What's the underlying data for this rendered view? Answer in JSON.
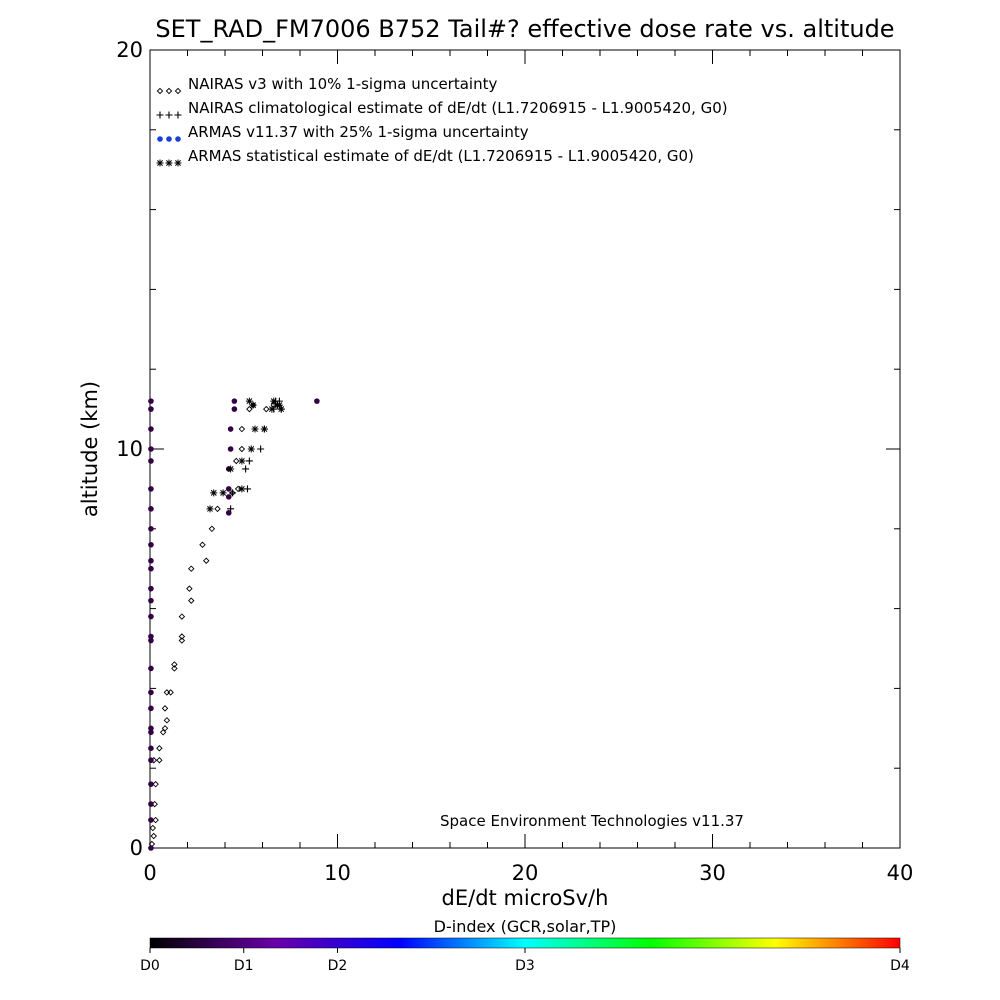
{
  "chart_data": {
    "type": "scatter",
    "title": "SET_RAD_FM7006  B752 Tail#? effective dose rate vs. altitude",
    "xlabel": "dE/dt microSv/h",
    "ylabel": "altitude (km)",
    "xlim": [
      0,
      40
    ],
    "ylim": [
      0,
      20
    ],
    "xticks": [
      0,
      10,
      20,
      30,
      40
    ],
    "yticks": [
      0,
      10,
      20
    ],
    "grid": false,
    "legend_position": "top-left",
    "annotation": "Space Environment Technologies v11.37",
    "colorbar": {
      "title": "D-index (GCR,solar,TP)",
      "labels": [
        "D0",
        "D1",
        "D2",
        "D3",
        "D4"
      ],
      "label_positions": [
        0.0,
        0.125,
        0.25,
        0.5,
        1.0
      ],
      "colors": [
        "#000000",
        "#6a00a8",
        "#0000ff",
        "#00ffff",
        "#00ff00",
        "#ffff00",
        "#ff0000"
      ]
    },
    "series": [
      {
        "name": "NAIRAS v3 with 10% 1-sigma uncertainty",
        "marker": "diamond",
        "color": "#000000",
        "points": [
          [
            0.1,
            0.1
          ],
          [
            0.2,
            0.3
          ],
          [
            0.15,
            0.5
          ],
          [
            0.3,
            0.7
          ],
          [
            0.25,
            1.1
          ],
          [
            0.3,
            1.6
          ],
          [
            0.2,
            2.2
          ],
          [
            0.5,
            2.2
          ],
          [
            0.5,
            2.5
          ],
          [
            0.7,
            2.9
          ],
          [
            0.8,
            3.0
          ],
          [
            0.9,
            3.2
          ],
          [
            0.8,
            3.5
          ],
          [
            1.1,
            3.9
          ],
          [
            0.9,
            3.9
          ],
          [
            1.3,
            4.5
          ],
          [
            1.3,
            4.6
          ],
          [
            1.7,
            5.2
          ],
          [
            1.7,
            5.3
          ],
          [
            1.7,
            5.8
          ],
          [
            2.2,
            6.2
          ],
          [
            2.1,
            6.5
          ],
          [
            2.2,
            7.0
          ],
          [
            3.0,
            7.2
          ],
          [
            2.8,
            7.6
          ],
          [
            3.3,
            8.0
          ],
          [
            3.6,
            8.5
          ],
          [
            4.4,
            8.9
          ],
          [
            4.7,
            9.0
          ],
          [
            4.6,
            9.7
          ],
          [
            4.9,
            10.0
          ],
          [
            4.9,
            10.5
          ],
          [
            5.3,
            11.0
          ],
          [
            5.5,
            11.1
          ],
          [
            6.2,
            11.0
          ],
          [
            6.6,
            11.1
          ]
        ]
      },
      {
        "name": "NAIRAS climatological estimate of dE/dt (L1.7206915 - L1.9005420, G0)",
        "marker": "plus",
        "color": "#000000",
        "points": [
          [
            4.3,
            8.5
          ],
          [
            4.4,
            8.9
          ],
          [
            5.2,
            9.0
          ],
          [
            5.1,
            9.5
          ],
          [
            5.3,
            9.7
          ],
          [
            5.9,
            10.0
          ],
          [
            6.1,
            10.5
          ],
          [
            6.6,
            11.0
          ],
          [
            6.7,
            11.2
          ],
          [
            7.0,
            11.0
          ],
          [
            6.9,
            11.2
          ]
        ]
      },
      {
        "name": "ARMAS v11.37 with 25% 1-sigma uncertainty",
        "marker": "dot",
        "color": "#330044",
        "points": [
          [
            4.2,
            8.4
          ],
          [
            4.2,
            8.8
          ],
          [
            4.2,
            9.0
          ],
          [
            4.2,
            9.5
          ],
          [
            4.3,
            10.0
          ],
          [
            4.3,
            10.5
          ],
          [
            4.5,
            11.0
          ],
          [
            4.5,
            11.2
          ],
          [
            8.9,
            11.2
          ],
          [
            0.05,
            0.0
          ],
          [
            0.05,
            0.7
          ],
          [
            0.05,
            1.1
          ],
          [
            0.05,
            1.6
          ],
          [
            0.05,
            2.2
          ],
          [
            0.05,
            2.5
          ],
          [
            0.05,
            2.9
          ],
          [
            0.05,
            3.0
          ],
          [
            0.05,
            3.5
          ],
          [
            0.05,
            3.9
          ],
          [
            0.05,
            4.5
          ],
          [
            0.05,
            5.2
          ],
          [
            0.05,
            5.3
          ],
          [
            0.05,
            5.8
          ],
          [
            0.05,
            6.2
          ],
          [
            0.05,
            6.5
          ],
          [
            0.05,
            7.0
          ],
          [
            0.05,
            7.2
          ],
          [
            0.05,
            7.6
          ],
          [
            0.05,
            8.0
          ],
          [
            0.05,
            8.5
          ],
          [
            0.05,
            9.0
          ],
          [
            0.05,
            9.7
          ],
          [
            0.05,
            10.0
          ],
          [
            0.05,
            10.5
          ],
          [
            0.05,
            11.0
          ],
          [
            0.05,
            11.2
          ]
        ]
      },
      {
        "name": "ARMAS statistical estimate of dE/dt (L1.7206915 - L1.9005420, G0)",
        "marker": "asterisk",
        "color": "#000000",
        "points": [
          [
            3.2,
            8.5
          ],
          [
            3.4,
            8.9
          ],
          [
            3.9,
            8.9
          ],
          [
            4.9,
            9.0
          ],
          [
            4.3,
            9.5
          ],
          [
            4.9,
            9.7
          ],
          [
            5.4,
            10.0
          ],
          [
            5.6,
            10.5
          ],
          [
            6.1,
            10.5
          ],
          [
            5.3,
            11.2
          ],
          [
            5.5,
            11.1
          ],
          [
            6.5,
            11.0
          ],
          [
            6.6,
            11.2
          ],
          [
            6.9,
            11.1
          ],
          [
            7.0,
            11.0
          ],
          [
            6.8,
            11.1
          ]
        ]
      }
    ]
  }
}
